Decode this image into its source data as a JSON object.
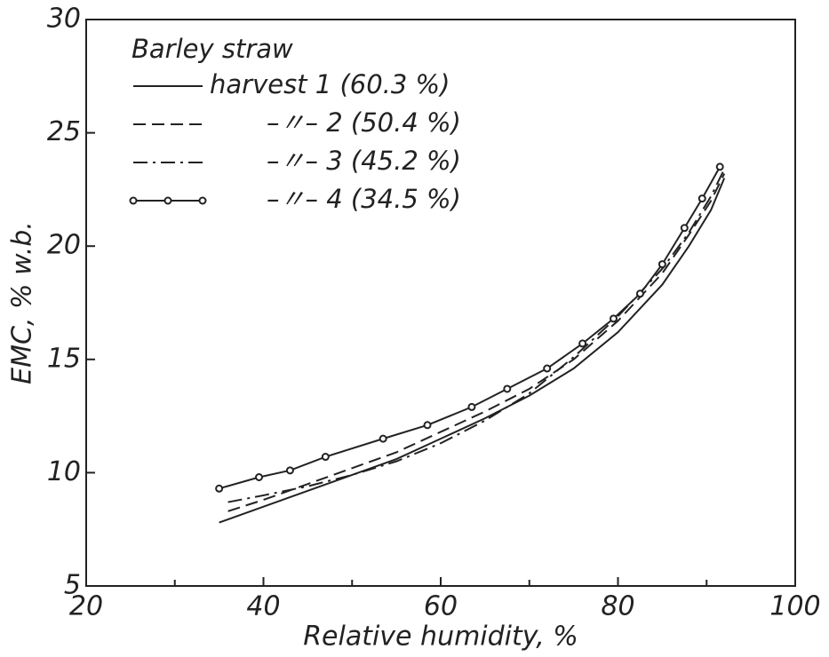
{
  "chart_data": {
    "type": "line",
    "xlabel": "Relative humidity, %",
    "ylabel": "EMC, % w.b.",
    "legend_title": "Barley straw",
    "legend": "upper left",
    "xlim": [
      20,
      100
    ],
    "xticks": [
      20,
      40,
      60,
      80,
      100
    ],
    "xticks_minor": [
      30,
      50,
      70,
      90
    ],
    "ylim": [
      5,
      30
    ],
    "yticks": [
      5,
      10,
      15,
      20,
      25,
      30
    ],
    "series": [
      {
        "name": "harvest 1 (60.3 %)",
        "color": "#222",
        "style": "solid",
        "x": [
          35,
          40,
          45,
          50,
          55,
          60,
          65,
          70,
          75,
          80,
          85,
          88,
          90.5,
          92
        ],
        "values": [
          7.8,
          8.5,
          9.2,
          9.9,
          10.6,
          11.5,
          12.4,
          13.4,
          14.6,
          16.2,
          18.3,
          20.0,
          21.6,
          23.0
        ]
      },
      {
        "name": "–〃– 2 (50.4 %)",
        "color": "#222",
        "style": "dashed",
        "x": [
          36,
          40,
          45,
          50,
          55,
          60,
          65,
          70,
          75,
          80,
          85,
          88,
          90.5,
          92
        ],
        "values": [
          8.3,
          8.8,
          9.5,
          10.2,
          10.9,
          11.8,
          12.7,
          13.7,
          15.0,
          16.7,
          18.8,
          20.5,
          22.0,
          23.2
        ]
      },
      {
        "name": "–〃– 3 (45.2 %)",
        "color": "#222",
        "style": "dashdot",
        "x": [
          36,
          40,
          45,
          50,
          55,
          60,
          65,
          70,
          75,
          80,
          85,
          88,
          90.5,
          92
        ],
        "values": [
          8.7,
          9.0,
          9.4,
          9.9,
          10.5,
          11.3,
          12.3,
          13.5,
          15.1,
          16.9,
          19.0,
          20.6,
          22.2,
          23.4
        ]
      },
      {
        "name": "–〃– 4 (34.5 %)",
        "color": "#222",
        "style": "marker",
        "x": [
          35,
          39.5,
          43,
          47,
          53.5,
          58.5,
          63.5,
          67.5,
          72,
          76,
          79.5,
          82.5,
          85,
          87.5,
          89.5,
          91.5
        ],
        "values": [
          9.3,
          9.8,
          10.1,
          10.7,
          11.5,
          12.1,
          12.9,
          13.7,
          14.6,
          15.7,
          16.8,
          17.9,
          19.2,
          20.8,
          22.1,
          23.5
        ]
      }
    ]
  }
}
